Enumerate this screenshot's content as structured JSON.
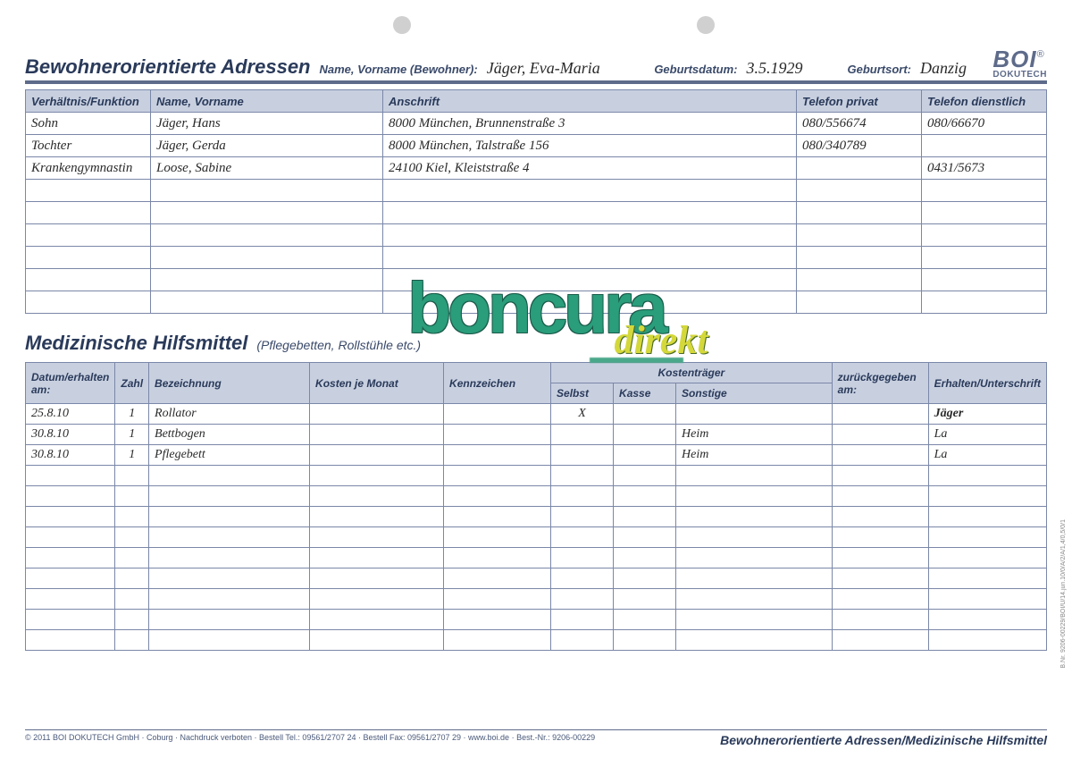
{
  "header": {
    "title": "Bewohnerorientierte Adressen",
    "name_label": "Name, Vorname (Bewohner):",
    "name_value": "Jäger, Eva-Maria",
    "dob_label": "Geburtsdatum:",
    "dob_value": "3.5.1929",
    "pob_label": "Geburtsort:",
    "pob_value": "Danzig"
  },
  "logo": {
    "top": "BOI",
    "bottom": "DOKUTECH",
    "reg": "®"
  },
  "table1": {
    "columns": [
      "Verhältnis/Funktion",
      "Name, Vorname",
      "Anschrift",
      "Telefon privat",
      "Telefon dienstlich"
    ],
    "rows": [
      [
        "Sohn",
        "Jäger, Hans",
        "8000 München, Brunnenstraße 3",
        "080/556674",
        "080/66670"
      ],
      [
        "Tochter",
        "Jäger, Gerda",
        "8000 München, Talstraße 156",
        "080/340789",
        ""
      ],
      [
        "Krankengymnastin",
        "Loose, Sabine",
        "24100 Kiel, Kleiststraße 4",
        "",
        "0431/5673"
      ],
      [
        "",
        "",
        "",
        "",
        ""
      ],
      [
        "",
        "",
        "",
        "",
        ""
      ],
      [
        "",
        "",
        "",
        "",
        ""
      ],
      [
        "",
        "",
        "",
        "",
        ""
      ],
      [
        "",
        "",
        "",
        "",
        ""
      ],
      [
        "",
        "",
        "",
        "",
        ""
      ]
    ]
  },
  "section2": {
    "title": "Medizinische Hilfsmittel",
    "subtitle": "(Pflegebetten, Rollstühle etc.)"
  },
  "table2": {
    "header_group": "Kostenträger",
    "columns": [
      "Datum/erhalten am:",
      "Zahl",
      "Bezeichnung",
      "Kosten je Monat",
      "Kennzeichen",
      "Selbst",
      "Kasse",
      "Sonstige",
      "zurückgegeben am:",
      "Erhalten/Unterschrift"
    ],
    "rows": [
      [
        "25.8.10",
        "1",
        "Rollator",
        "",
        "",
        "X",
        "",
        "",
        "",
        "Jäger"
      ],
      [
        "30.8.10",
        "1",
        "Bettbogen",
        "",
        "",
        "",
        "",
        "Heim",
        "",
        "La"
      ],
      [
        "30.8.10",
        "1",
        "Pflegebett",
        "",
        "",
        "",
        "",
        "Heim",
        "",
        "La"
      ],
      [
        "",
        "",
        "",
        "",
        "",
        "",
        "",
        "",
        "",
        ""
      ],
      [
        "",
        "",
        "",
        "",
        "",
        "",
        "",
        "",
        "",
        ""
      ],
      [
        "",
        "",
        "",
        "",
        "",
        "",
        "",
        "",
        "",
        ""
      ],
      [
        "",
        "",
        "",
        "",
        "",
        "",
        "",
        "",
        "",
        ""
      ],
      [
        "",
        "",
        "",
        "",
        "",
        "",
        "",
        "",
        "",
        ""
      ],
      [
        "",
        "",
        "",
        "",
        "",
        "",
        "",
        "",
        "",
        ""
      ],
      [
        "",
        "",
        "",
        "",
        "",
        "",
        "",
        "",
        "",
        ""
      ],
      [
        "",
        "",
        "",
        "",
        "",
        "",
        "",
        "",
        "",
        ""
      ],
      [
        "",
        "",
        "",
        "",
        "",
        "",
        "",
        "",
        "",
        ""
      ]
    ]
  },
  "watermark": {
    "main": "boncura",
    "sub": "direkt"
  },
  "footer": {
    "left": "© 2011 BOI DOKUTECH GmbH · Coburg · Nachdruck verboten · Bestell Tel.: 09561/2707 24 · Bestell Fax: 09561/2707 29 · www.boi.de · Best.-Nr.: 9206-00229",
    "right": "Bewohnerorientierte Adressen/Medizinische Hilfsmittel"
  },
  "colors": {
    "header_border": "#5e6b8a",
    "th_bg": "#c8d0e0",
    "cell_border": "#7a87a8",
    "text_primary": "#2a3a5a",
    "handwriting": "#2a2a2a",
    "wm_green": "#2a9d7a",
    "wm_yellow": "#d4d83a"
  }
}
